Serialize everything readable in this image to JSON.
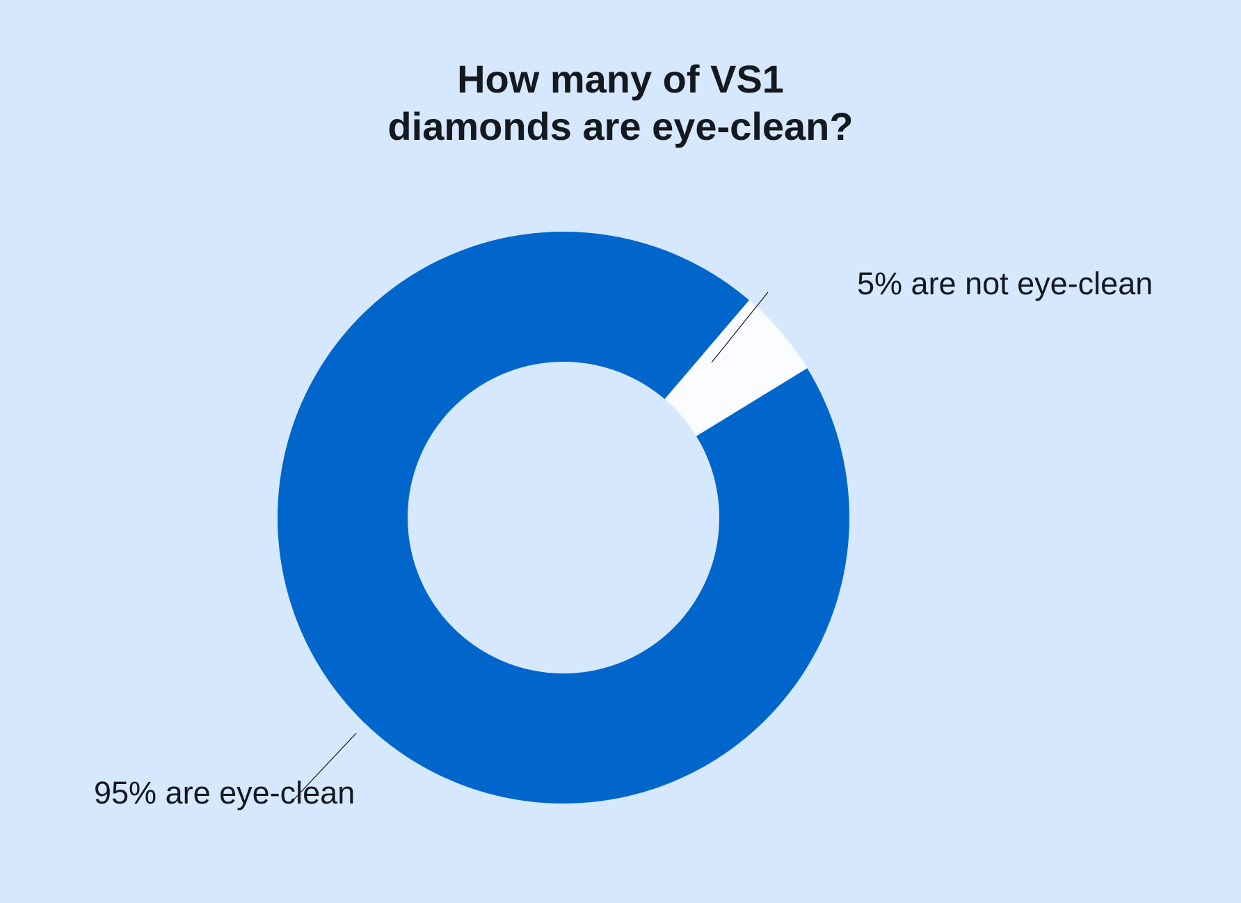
{
  "chart_data": {
    "type": "pie",
    "donut": true,
    "title_lines": [
      "How many of VS1",
      "diamonds are eye-clean?"
    ],
    "slices": [
      {
        "label": "5% are not eye-clean",
        "value": 5,
        "color": "#fafcff"
      },
      {
        "label": "95% are eye-clean",
        "value": 95,
        "color": "#0066cc"
      }
    ],
    "background": "#d6e8fd",
    "legend": "none (leader-line labels)"
  }
}
